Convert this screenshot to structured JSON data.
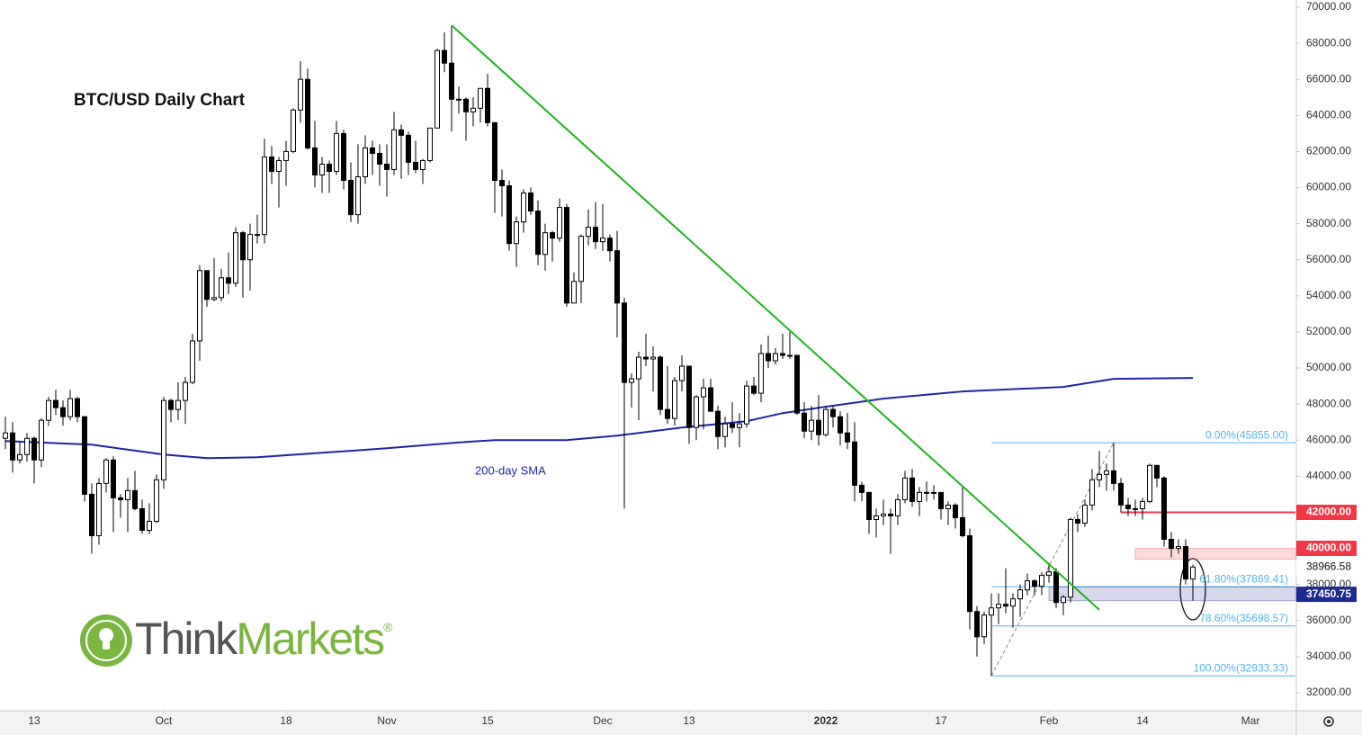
{
  "chart_data": {
    "type": "candlestick",
    "title": "BTC/USD Daily Chart",
    "up_color": "#ffffff",
    "down_color": "#000000",
    "edge_color": "#000000",
    "candles": [
      [
        46100,
        47300,
        45500,
        46400
      ],
      [
        46400,
        47000,
        44200,
        44900
      ],
      [
        44900,
        45900,
        44700,
        45200
      ],
      [
        45200,
        46400,
        44800,
        46100
      ],
      [
        46100,
        46200,
        43600,
        44900
      ],
      [
        44900,
        47200,
        44500,
        47100
      ],
      [
        47100,
        48400,
        46800,
        48200
      ],
      [
        48200,
        48800,
        47400,
        47800
      ],
      [
        47800,
        48200,
        46800,
        47300
      ],
      [
        47300,
        48800,
        47100,
        48300
      ],
      [
        48300,
        48400,
        47000,
        47300
      ],
      [
        47300,
        47300,
        42600,
        43000
      ],
      [
        43000,
        43600,
        39700,
        40700
      ],
      [
        40700,
        43900,
        40200,
        43600
      ],
      [
        43600,
        45000,
        43100,
        44900
      ],
      [
        44900,
        45100,
        40900,
        42800
      ],
      [
        42800,
        43000,
        41700,
        42700
      ],
      [
        42700,
        43900,
        40900,
        43200
      ],
      [
        43200,
        44300,
        42100,
        42200
      ],
      [
        42200,
        42700,
        40800,
        41000
      ],
      [
        41000,
        42500,
        40800,
        41500
      ],
      [
        41500,
        44100,
        41400,
        43800
      ],
      [
        43800,
        48400,
        43300,
        48200
      ],
      [
        48200,
        48300,
        47000,
        47700
      ],
      [
        47700,
        49200,
        47100,
        48200
      ],
      [
        48200,
        49500,
        46900,
        49200
      ],
      [
        49200,
        51900,
        49100,
        51500
      ],
      [
        51500,
        55700,
        50400,
        55400
      ],
      [
        55400,
        55400,
        53400,
        53800
      ],
      [
        53800,
        56100,
        53700,
        53900
      ],
      [
        53900,
        55500,
        53700,
        55000
      ],
      [
        55000,
        56400,
        54100,
        54700
      ],
      [
        54700,
        57800,
        54500,
        57500
      ],
      [
        57500,
        57600,
        53900,
        56000
      ],
      [
        56000,
        58000,
        54300,
        57400
      ],
      [
        57400,
        58500,
        56900,
        57400
      ],
      [
        57400,
        62700,
        56900,
        61700
      ],
      [
        61700,
        62300,
        60200,
        60900
      ],
      [
        60900,
        61700,
        58900,
        61500
      ],
      [
        61500,
        62600,
        60100,
        62000
      ],
      [
        62000,
        64400,
        61900,
        64300
      ],
      [
        64300,
        67000,
        63600,
        66000
      ],
      [
        66000,
        66600,
        62100,
        62200
      ],
      [
        62200,
        63700,
        60000,
        60700
      ],
      [
        60700,
        61700,
        59700,
        61300
      ],
      [
        61300,
        61500,
        59700,
        60900
      ],
      [
        60900,
        63700,
        60700,
        63000
      ],
      [
        63000,
        63200,
        59900,
        60400
      ],
      [
        60400,
        61400,
        58100,
        58500
      ],
      [
        58500,
        62400,
        58000,
        60600
      ],
      [
        60600,
        62900,
        60200,
        62200
      ],
      [
        62200,
        62600,
        60700,
        61900
      ],
      [
        61900,
        62400,
        60100,
        61300
      ],
      [
        61300,
        62400,
        59500,
        61000
      ],
      [
        61000,
        64200,
        60700,
        63200
      ],
      [
        63200,
        63500,
        60500,
        62900
      ],
      [
        62900,
        63100,
        60700,
        61400
      ],
      [
        61400,
        62600,
        60800,
        61000
      ],
      [
        61000,
        61600,
        60200,
        61500
      ],
      [
        61500,
        63300,
        61400,
        63300
      ],
      [
        63300,
        67700,
        63300,
        67600
      ],
      [
        67600,
        68600,
        66400,
        66900
      ],
      [
        66900,
        69000,
        63100,
        64900
      ],
      [
        64900,
        65600,
        64100,
        64900
      ],
      [
        64900,
        65000,
        62600,
        64200
      ],
      [
        64200,
        65000,
        63400,
        64400
      ],
      [
        64400,
        65500,
        63600,
        65500
      ],
      [
        65500,
        66300,
        63400,
        63600
      ],
      [
        63600,
        63600,
        58600,
        60400
      ],
      [
        60400,
        61000,
        58400,
        60100
      ],
      [
        60100,
        60400,
        56500,
        56900
      ],
      [
        56900,
        58400,
        55600,
        58100
      ],
      [
        58100,
        59900,
        57500,
        59700
      ],
      [
        59700,
        60000,
        58500,
        58700
      ],
      [
        58700,
        59300,
        55700,
        56300
      ],
      [
        56300,
        58000,
        55400,
        57500
      ],
      [
        57500,
        57600,
        55900,
        57200
      ],
      [
        57200,
        59400,
        57000,
        58900
      ],
      [
        58900,
        59100,
        53400,
        53600
      ],
      [
        53600,
        55300,
        53600,
        54800
      ],
      [
        54800,
        57400,
        53600,
        57300
      ],
      [
        57300,
        58800,
        56800,
        57800
      ],
      [
        57800,
        59200,
        56600,
        57000
      ],
      [
        57000,
        59100,
        56500,
        57200
      ],
      [
        57200,
        57400,
        55900,
        56500
      ],
      [
        56500,
        57600,
        51700,
        53600
      ],
      [
        53600,
        53900,
        42200,
        49200
      ],
      [
        49200,
        49700,
        47800,
        49400
      ],
      [
        49400,
        50900,
        47100,
        50600
      ],
      [
        50600,
        51900,
        50100,
        50500
      ],
      [
        50500,
        51200,
        48700,
        50600
      ],
      [
        50600,
        50700,
        47400,
        47700
      ],
      [
        47700,
        50100,
        46900,
        47200
      ],
      [
        47200,
        49500,
        46800,
        49300
      ],
      [
        49300,
        50700,
        48700,
        50100
      ],
      [
        50100,
        50100,
        45800,
        46700
      ],
      [
        46700,
        48500,
        46000,
        48400
      ],
      [
        48400,
        49400,
        46600,
        48900
      ],
      [
        48900,
        49400,
        47600,
        47600
      ],
      [
        47600,
        47900,
        45500,
        46200
      ],
      [
        46200,
        47300,
        45600,
        46900
      ],
      [
        46900,
        48100,
        46400,
        46700
      ],
      [
        46700,
        47500,
        45600,
        46900
      ],
      [
        46900,
        49300,
        46700,
        49000
      ],
      [
        49000,
        49500,
        48500,
        48600
      ],
      [
        48600,
        51300,
        48100,
        50800
      ],
      [
        50800,
        51800,
        50000,
        50400
      ],
      [
        50400,
        51100,
        50200,
        50800
      ],
      [
        50800,
        51900,
        50500,
        50700
      ],
      [
        50700,
        52000,
        50500,
        50700
      ],
      [
        50700,
        50700,
        47400,
        47500
      ],
      [
        47500,
        48100,
        46100,
        46500
      ],
      [
        46500,
        47900,
        46000,
        47100
      ],
      [
        47100,
        48500,
        45700,
        46300
      ],
      [
        46300,
        47900,
        46200,
        47700
      ],
      [
        47700,
        47900,
        46700,
        47300
      ],
      [
        47300,
        47600,
        45700,
        46400
      ],
      [
        46400,
        47500,
        45500,
        45900
      ],
      [
        45900,
        47000,
        42600,
        43500
      ],
      [
        43500,
        43700,
        42600,
        43100
      ],
      [
        43100,
        43100,
        40800,
        41600
      ],
      [
        41600,
        42200,
        40600,
        41800
      ],
      [
        41800,
        42700,
        41300,
        41900
      ],
      [
        41900,
        42200,
        39700,
        41800
      ],
      [
        41800,
        43000,
        41300,
        42700
      ],
      [
        42700,
        44300,
        42500,
        43900
      ],
      [
        43900,
        44400,
        42300,
        42600
      ],
      [
        42600,
        43400,
        41800,
        43100
      ],
      [
        43100,
        43700,
        42600,
        43100
      ],
      [
        43100,
        43500,
        42700,
        43100
      ],
      [
        43100,
        43100,
        41600,
        42200
      ],
      [
        42200,
        42600,
        41300,
        42400
      ],
      [
        42400,
        42500,
        41100,
        41700
      ],
      [
        41700,
        43500,
        40600,
        40700
      ],
      [
        40700,
        41100,
        35500,
        36500
      ],
      [
        36500,
        36800,
        34000,
        35100
      ],
      [
        35100,
        36500,
        34700,
        36300
      ],
      [
        36300,
        37500,
        32933.33,
        36700
      ],
      [
        36700,
        37500,
        35800,
        36900
      ],
      [
        36900,
        38900,
        36400,
        36800
      ],
      [
        36800,
        37500,
        35600,
        37200
      ],
      [
        37200,
        38000,
        36200,
        37700
      ],
      [
        37700,
        38600,
        37400,
        38200
      ],
      [
        38200,
        38300,
        37400,
        37900
      ],
      [
        37900,
        38700,
        37400,
        38500
      ],
      [
        38500,
        39200,
        38100,
        38700
      ],
      [
        38700,
        38900,
        36700,
        37000
      ],
      [
        37000,
        37400,
        36300,
        37300
      ],
      [
        37300,
        41700,
        37000,
        41600
      ],
      [
        41600,
        41900,
        40900,
        41400
      ],
      [
        41400,
        42700,
        41200,
        42400
      ],
      [
        42400,
        44400,
        42100,
        43800
      ],
      [
        43800,
        45400,
        43400,
        44100
      ],
      [
        44100,
        44700,
        43200,
        44300
      ],
      [
        44300,
        45855,
        43200,
        43600
      ],
      [
        43600,
        43900,
        42000,
        42400
      ],
      [
        42400,
        42800,
        41800,
        42200
      ],
      [
        42200,
        42700,
        41800,
        42200
      ],
      [
        42200,
        42800,
        41600,
        42600
      ],
      [
        42600,
        44700,
        42500,
        44600
      ],
      [
        44600,
        44600,
        43400,
        43900
      ],
      [
        43900,
        44000,
        40100,
        40500
      ],
      [
        40500,
        40900,
        39500,
        40000
      ],
      [
        40000,
        40500,
        39700,
        40100
      ],
      [
        40100,
        40500,
        38000,
        38300
      ],
      [
        38300,
        39100,
        37100,
        38966.58
      ]
    ],
    "xlim": [
      -0.75,
      179.25
    ],
    "xticks": [
      {
        "value": 4,
        "label": "13"
      },
      {
        "value": 22,
        "label": "Oct"
      },
      {
        "value": 39,
        "label": "18"
      },
      {
        "value": 53,
        "label": "Nov"
      },
      {
        "value": 67,
        "label": "15"
      },
      {
        "value": 83,
        "label": "Dec"
      },
      {
        "value": 95,
        "label": "13"
      },
      {
        "value": 114,
        "label": "2022"
      },
      {
        "value": 130,
        "label": "17"
      },
      {
        "value": 145,
        "label": "Feb"
      },
      {
        "value": 158,
        "label": "14"
      },
      {
        "value": 173,
        "label": "Mar"
      }
    ],
    "ylim": [
      31000,
      70400
    ],
    "yticks": [
      {
        "value": 32000,
        "label": "32000.00"
      },
      {
        "value": 34000,
        "label": "34000.00"
      },
      {
        "value": 36000,
        "label": "36000.00"
      },
      {
        "value": 38000,
        "label": "38000.00"
      },
      {
        "value": 40000,
        "label": "40000.00"
      },
      {
        "value": 42000,
        "label": "42000.00"
      },
      {
        "value": 44000,
        "label": "44000.00"
      },
      {
        "value": 46000,
        "label": "46000.00"
      },
      {
        "value": 48000,
        "label": "48000.00"
      },
      {
        "value": 50000,
        "label": "50000.00"
      },
      {
        "value": 52000,
        "label": "52000.00"
      },
      {
        "value": 54000,
        "label": "54000.00"
      },
      {
        "value": 56000,
        "label": "56000.00"
      },
      {
        "value": 58000,
        "label": "58000.00"
      },
      {
        "value": 60000,
        "label": "60000.00"
      },
      {
        "value": 62000,
        "label": "62000.00"
      },
      {
        "value": 64000,
        "label": "64000.00"
      },
      {
        "value": 66000,
        "label": "66000.00"
      },
      {
        "value": 68000,
        "label": "68000.00"
      },
      {
        "value": 70000,
        "label": "70000.00"
      }
    ],
    "grid": false,
    "sma": {
      "name": "200-day SMA",
      "color": "#1c25a8",
      "x": [
        0,
        12,
        22,
        28,
        35,
        44,
        53,
        64,
        68,
        78,
        85,
        94,
        103,
        108,
        114,
        122,
        133,
        147,
        154,
        165
      ],
      "values": [
        45950,
        45750,
        45200,
        45000,
        45050,
        45300,
        45550,
        45900,
        46000,
        46000,
        46250,
        46700,
        47050,
        47500,
        47850,
        48300,
        48700,
        48950,
        49400,
        49450
      ]
    },
    "trendline": {
      "color": "#1fb31f",
      "x": [
        62,
        152
      ],
      "values": [
        69000,
        36600
      ]
    },
    "fib": {
      "color": "#4fb6e6",
      "x": [
        137,
        154
      ],
      "levels": [
        {
          "value": 45855,
          "label": "0.00%(45855.00)"
        },
        {
          "value": 37869.41,
          "label": "61.80%(37869.41)"
        },
        {
          "value": 35698.57,
          "label": "78.60%(35698.57)"
        },
        {
          "value": 32933.33,
          "label": "100.00%(32933.33)"
        }
      ]
    },
    "levels": [
      {
        "kind": "line",
        "value": 42000,
        "label": "42000.00",
        "color": "#f23645",
        "from": 155
      },
      {
        "kind": "zone",
        "value": 40000,
        "low": 39400,
        "high": 40000,
        "label": "40000.00",
        "color": "#f23645",
        "from": 157
      },
      {
        "kind": "price",
        "value": 38966.58,
        "label": "38966.58",
        "color": "#ffffff"
      },
      {
        "kind": "zone",
        "value": 37450.75,
        "low": 37100,
        "high": 37869.41,
        "label": "37450.75",
        "color": "#1c2a8f",
        "from": 145
      }
    ]
  },
  "logo": {
    "think": "Think",
    "markets": "Markets",
    "mark": "®"
  }
}
